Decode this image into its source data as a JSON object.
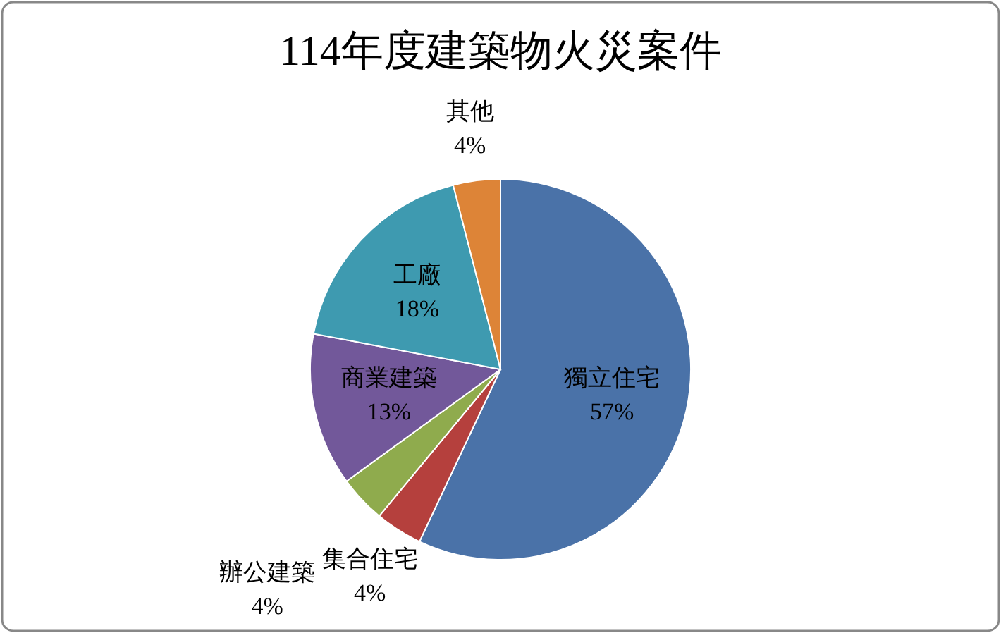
{
  "chart_data": {
    "type": "pie",
    "title": "114年度建築物火災案件",
    "categories": [
      "獨立住宅",
      "集合住宅",
      "辦公建築",
      "商業建築",
      "工廠",
      "其他"
    ],
    "values": [
      57,
      4,
      4,
      13,
      18,
      4
    ],
    "value_labels": [
      "57%",
      "4%",
      "4%",
      "13%",
      "18%",
      "4%"
    ],
    "colors": [
      "#4a72a8",
      "#b5403d",
      "#8fab4d",
      "#72589a",
      "#3e9ab0",
      "#dd8437"
    ]
  }
}
